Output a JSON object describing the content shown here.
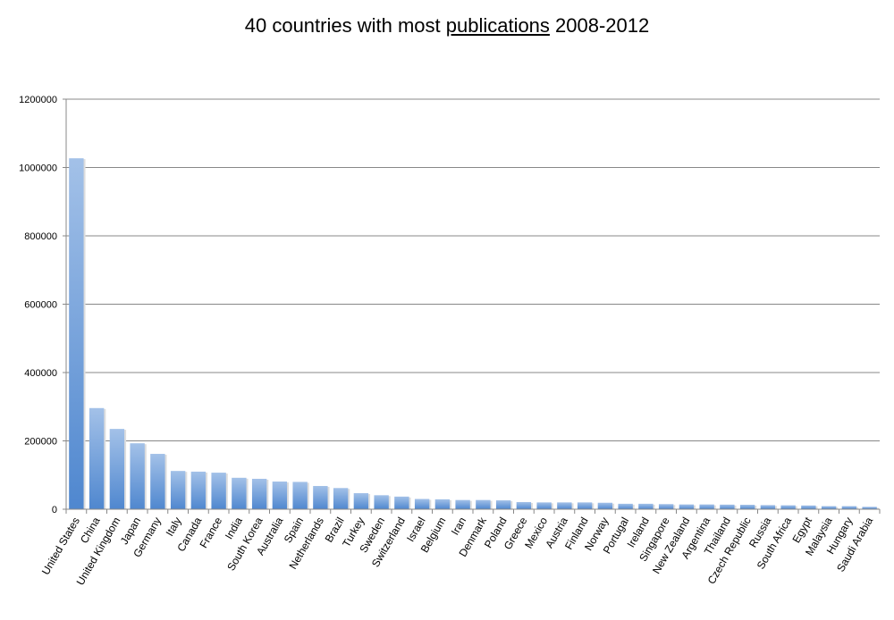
{
  "chart_data": {
    "type": "bar",
    "title_parts": [
      "40 countries with most ",
      "publications",
      " 2008-2012"
    ],
    "xlabel": "",
    "ylabel": "",
    "ylim": [
      0,
      1200000
    ],
    "yticks": [
      0,
      200000,
      400000,
      600000,
      800000,
      1000000,
      1200000
    ],
    "grid": true,
    "legend": "none",
    "bar_color": "#4f87cf",
    "bar_color_light": "#a3c1e8",
    "categories": [
      "United States",
      "China",
      "United Kingdom",
      "Japan",
      "Germany",
      "Italy",
      "Canada",
      "France",
      "India",
      "South Korea",
      "Australia",
      "Spain",
      "Netherlands",
      "Brazil",
      "Turkey",
      "Sweden",
      "Switzerland",
      "Israel",
      "Belgium",
      "Iran",
      "Denmark",
      "Poland",
      "Greece",
      "Mexico",
      "Austria",
      "Finland",
      "Norway",
      "Portugal",
      "Ireland",
      "Singapore",
      "New Zealand",
      "Argentina",
      "Thailand",
      "Czech Republic",
      "Russia",
      "South Africa",
      "Egypt",
      "Malaysia",
      "Hungary",
      "Saudi Arabia"
    ],
    "values": [
      1027000,
      296000,
      235000,
      193000,
      162000,
      112000,
      110000,
      107000,
      92000,
      89000,
      81000,
      80000,
      68000,
      62000,
      47000,
      41000,
      37000,
      30000,
      29000,
      27000,
      27000,
      26000,
      21000,
      20000,
      20000,
      20000,
      19000,
      16000,
      16000,
      15000,
      14000,
      14000,
      13500,
      13000,
      12000,
      11500,
      11000,
      9000,
      9000,
      7000
    ]
  }
}
